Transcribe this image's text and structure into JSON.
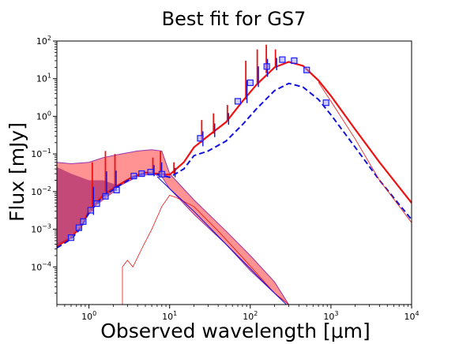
{
  "chart_data": {
    "type": "line",
    "title": "Best fit for GS7",
    "xlabel": "Observed wavelength [μm]",
    "ylabel": "Flux [mJy]",
    "x_scale": "log",
    "y_scale": "log",
    "xlim": [
      0.4,
      10000
    ],
    "ylim": [
      1e-05,
      100
    ],
    "grid": false,
    "legend": "none",
    "x_tick_labels": [
      {
        "value": 1,
        "base": "10",
        "exp": "0"
      },
      {
        "value": 10,
        "base": "10",
        "exp": "1"
      },
      {
        "value": 100,
        "base": "10",
        "exp": "2"
      },
      {
        "value": 1000,
        "base": "10",
        "exp": "3"
      },
      {
        "value": 10000,
        "base": "10",
        "exp": "4"
      }
    ],
    "y_tick_labels": [
      {
        "value": 0.0001,
        "base": "10",
        "exp": "−4"
      },
      {
        "value": 0.001,
        "base": "10",
        "exp": "−3"
      },
      {
        "value": 0.01,
        "base": "10",
        "exp": "−2"
      },
      {
        "value": 0.1,
        "base": "10",
        "exp": "−1"
      },
      {
        "value": 1,
        "base": "10",
        "exp": "0"
      },
      {
        "value": 10,
        "base": "10",
        "exp": "1"
      },
      {
        "value": 100,
        "base": "10",
        "exp": "2"
      }
    ],
    "colors": {
      "model": "#ee1111",
      "model_dashed": "#1111dd",
      "stellar_fill": "#ff7f7f",
      "stellar_fill_dark": "#b03070",
      "band": "#9933aa",
      "markers": "#1a1aff"
    },
    "series": [
      {
        "style": "solid-red-total",
        "points": [
          [
            0.4,
            0.00035
          ],
          [
            0.6,
            0.0006
          ],
          [
            0.8,
            0.0012
          ],
          [
            1.0,
            0.003
          ],
          [
            1.5,
            0.008
          ],
          [
            2.2,
            0.014
          ],
          [
            3.5,
            0.025
          ],
          [
            5,
            0.032
          ],
          [
            7,
            0.03
          ],
          [
            10,
            0.028
          ],
          [
            15,
            0.06
          ],
          [
            20,
            0.15
          ],
          [
            30,
            0.3
          ],
          [
            50,
            0.7
          ],
          [
            80,
            2.5
          ],
          [
            120,
            7
          ],
          [
            200,
            20
          ],
          [
            300,
            28
          ],
          [
            450,
            22
          ],
          [
            700,
            9
          ],
          [
            1000,
            3.5
          ],
          [
            2000,
            0.45
          ],
          [
            4000,
            0.06
          ],
          [
            10000,
            0.005
          ]
        ]
      },
      {
        "style": "dashed-blue-total",
        "points": [
          [
            0.4,
            0.00032
          ],
          [
            0.6,
            0.00055
          ],
          [
            0.8,
            0.0011
          ],
          [
            1.0,
            0.0028
          ],
          [
            1.5,
            0.0075
          ],
          [
            2.2,
            0.013
          ],
          [
            3.5,
            0.024
          ],
          [
            5,
            0.031
          ],
          [
            7,
            0.029
          ],
          [
            10,
            0.024
          ],
          [
            15,
            0.04
          ],
          [
            20,
            0.09
          ],
          [
            30,
            0.12
          ],
          [
            50,
            0.22
          ],
          [
            80,
            0.6
          ],
          [
            120,
            1.6
          ],
          [
            200,
            4.8
          ],
          [
            300,
            7.5
          ],
          [
            450,
            6
          ],
          [
            700,
            2.8
          ],
          [
            1000,
            1.1
          ],
          [
            2000,
            0.15
          ],
          [
            4000,
            0.02
          ],
          [
            10000,
            0.0018
          ]
        ]
      },
      {
        "style": "thin-red-stellar-reddened",
        "points": [
          [
            2.6,
            1e-05
          ],
          [
            2.6,
            0.0001
          ],
          [
            3.0,
            0.00015
          ],
          [
            3.5,
            0.0001
          ],
          [
            4.5,
            0.0003
          ],
          [
            6,
            0.001
          ],
          [
            8,
            0.004
          ],
          [
            10,
            0.008
          ],
          [
            12,
            0.007
          ],
          [
            20,
            0.004
          ],
          [
            40,
            0.0009
          ],
          [
            80,
            0.00018
          ],
          [
            200,
            2e-05
          ],
          [
            300,
            1e-05
          ]
        ]
      },
      {
        "style": "thin-blue-stellar-intrinsic",
        "points": [
          [
            7,
            0.025
          ],
          [
            10,
            0.012
          ],
          [
            20,
            0.003
          ],
          [
            50,
            0.0004
          ],
          [
            100,
            9e-05
          ],
          [
            200,
            2e-05
          ],
          [
            280,
            1e-05
          ]
        ]
      },
      {
        "style": "thin-red-dust-longwave",
        "points": [
          [
            700,
            8
          ],
          [
            1000,
            2.5
          ],
          [
            2000,
            0.25
          ],
          [
            4000,
            0.02
          ],
          [
            10000,
            0.0015
          ]
        ]
      }
    ],
    "stellar_band": {
      "x": [
        0.4,
        0.6,
        1.0,
        1.5,
        2.5,
        4,
        6,
        8,
        10,
        20,
        50,
        100,
        200,
        300
      ],
      "upper": [
        0.06,
        0.055,
        0.06,
        0.08,
        0.1,
        0.12,
        0.13,
        0.12,
        0.03,
        0.006,
        0.0009,
        0.0002,
        4e-05,
        1e-05
      ],
      "lower": [
        0.0004,
        0.0006,
        0.0025,
        0.008,
        0.015,
        0.025,
        0.03,
        0.025,
        0.012,
        0.0025,
        0.0004,
        8e-05,
        2e-05,
        1e-05
      ]
    },
    "emission_lines": [
      {
        "x": 1.1,
        "peak": 0.06,
        "base": 0.003
      },
      {
        "x": 1.6,
        "peak": 0.12,
        "base": 0.01
      },
      {
        "x": 2.1,
        "peak": 0.1,
        "base": 0.013
      },
      {
        "x": 6.2,
        "peak": 0.08,
        "base": 0.032
      },
      {
        "x": 7.7,
        "peak": 0.12,
        "base": 0.03
      },
      {
        "x": 11.3,
        "peak": 0.06,
        "base": 0.03
      },
      {
        "x": 25,
        "peak": 0.8,
        "base": 0.2
      },
      {
        "x": 35,
        "peak": 1.2,
        "base": 0.35
      },
      {
        "x": 52,
        "peak": 2,
        "base": 0.75
      },
      {
        "x": 88,
        "peak": 30,
        "base": 2.8
      },
      {
        "x": 122,
        "peak": 60,
        "base": 7.5
      },
      {
        "x": 158,
        "peak": 80,
        "base": 14
      },
      {
        "x": 205,
        "peak": 60,
        "base": 21
      }
    ],
    "observed_points": [
      {
        "x": 0.6,
        "y": 0.0006
      },
      {
        "x": 0.75,
        "y": 0.0011
      },
      {
        "x": 0.85,
        "y": 0.0016
      },
      {
        "x": 1.05,
        "y": 0.0032
      },
      {
        "x": 1.25,
        "y": 0.0048
      },
      {
        "x": 1.6,
        "y": 0.0075
      },
      {
        "x": 2.2,
        "y": 0.011
      },
      {
        "x": 3.6,
        "y": 0.026
      },
      {
        "x": 4.5,
        "y": 0.03
      },
      {
        "x": 5.8,
        "y": 0.033
      },
      {
        "x": 8.0,
        "y": 0.029
      },
      {
        "x": 24,
        "y": 0.26
      },
      {
        "x": 70,
        "y": 2.5
      },
      {
        "x": 100,
        "y": 7.8
      },
      {
        "x": 160,
        "y": 21
      },
      {
        "x": 250,
        "y": 32
      },
      {
        "x": 350,
        "y": 30
      },
      {
        "x": 500,
        "y": 17
      },
      {
        "x": 870,
        "y": 2.3
      }
    ]
  }
}
